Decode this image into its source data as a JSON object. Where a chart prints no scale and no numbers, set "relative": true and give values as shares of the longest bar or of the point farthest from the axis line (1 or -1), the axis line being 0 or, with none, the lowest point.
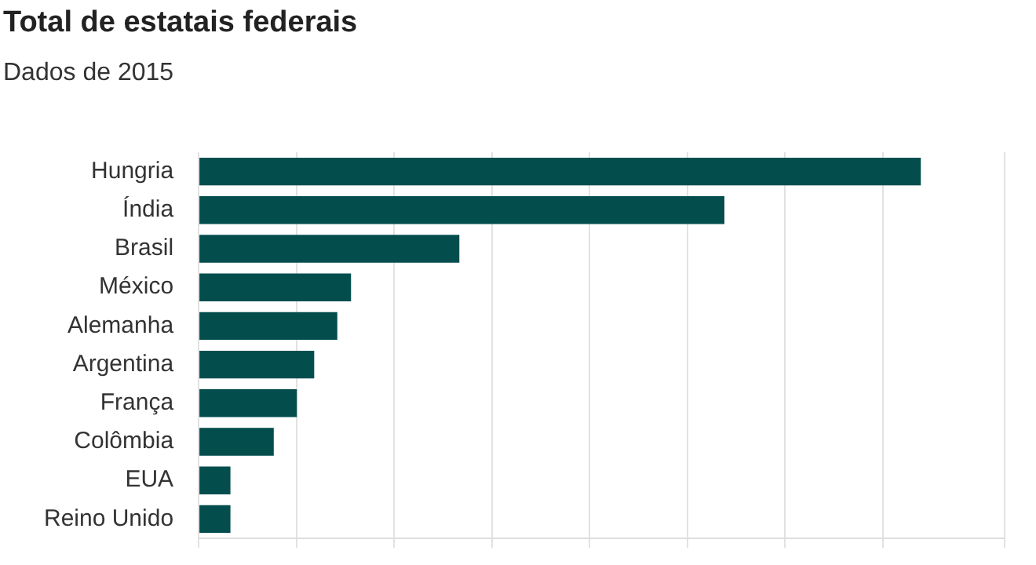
{
  "chart_data": {
    "type": "bar",
    "title": "Total de estatais federais",
    "subtitle": "Dados de 2015",
    "orientation": "horizontal",
    "relative": true,
    "grid": "x",
    "legend": false,
    "categories": [
      "Hungria",
      "Índia",
      "Brasil",
      "México",
      "Alemanha",
      "Argentina",
      "França",
      "Colômbia",
      "EUA",
      "Reino Unido"
    ],
    "values": [
      1,
      0.728,
      0.361,
      0.211,
      0.192,
      0.16,
      0.136,
      0.104,
      0.044,
      0.044
    ],
    "color": "#034d4d"
  }
}
